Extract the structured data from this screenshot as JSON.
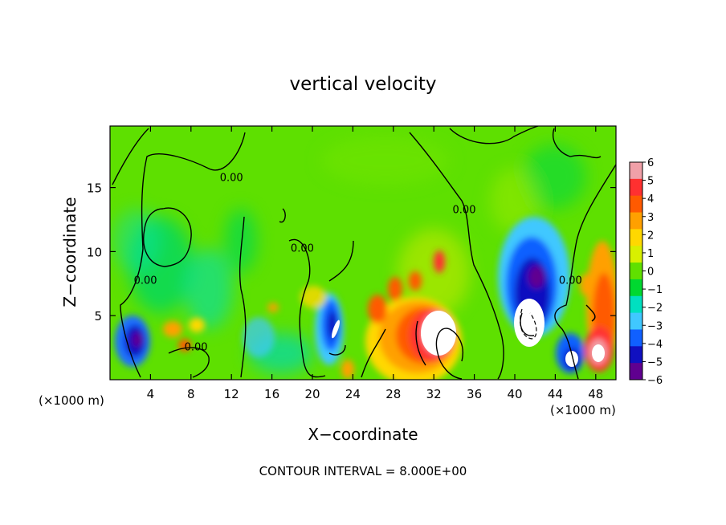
{
  "chart_data": {
    "type": "heatmap",
    "title": "vertical velocity",
    "xlabel": "X−coordinate",
    "ylabel": "Z−coordinate",
    "x_unit_label": "(×1000 m)",
    "x_unit_label_right": "(×1000 m)",
    "footer": "CONTOUR INTERVAL = 8.000E+00",
    "xlim": [
      0,
      50
    ],
    "ylim": [
      0,
      19.8
    ],
    "x_ticks": [
      4,
      8,
      12,
      16,
      20,
      24,
      28,
      32,
      36,
      40,
      44,
      48
    ],
    "y_ticks": [
      5,
      10,
      15
    ],
    "colorbar": {
      "range": [
        -6,
        6
      ],
      "ticks": [
        6,
        5,
        4,
        3,
        2,
        1,
        0,
        -1,
        -2,
        -3,
        -4,
        -5,
        -6
      ],
      "tick_labels": [
        "6",
        "5",
        "4",
        "3",
        "2",
        "1",
        "0",
        "−1",
        "−2",
        "−3",
        "−4",
        "−5",
        "−6"
      ],
      "colors": [
        "#f0a0a8",
        "#ff3030",
        "#ff5a00",
        "#ffa000",
        "#ffd800",
        "#d8f000",
        "#60e000",
        "#00d830",
        "#00e0c0",
        "#40c8ff",
        "#1060ff",
        "#1010c0",
        "#600090"
      ]
    },
    "contour_labels": [
      {
        "text": "0.00",
        "x": 12.0,
        "y": 15.5
      },
      {
        "text": "0.00",
        "x": 3.5,
        "y": 7.5
      },
      {
        "text": "0.00",
        "x": 8.5,
        "y": 2.3
      },
      {
        "text": "0.00",
        "x": 19.0,
        "y": 10.0
      },
      {
        "text": "0.00",
        "x": 35.0,
        "y": 13.0
      },
      {
        "text": "0.00",
        "x": 45.5,
        "y": 7.5
      }
    ],
    "features": [
      {
        "x": 2.5,
        "z": 3.2,
        "value": -5.5
      },
      {
        "x": 21.0,
        "z": 4.0,
        "value": -5.0
      },
      {
        "x": 31.5,
        "z": 3.0,
        "value": 8.0
      },
      {
        "x": 41.0,
        "z": 4.5,
        "value": -8.0
      },
      {
        "x": 48.5,
        "z": 2.5,
        "value": 8.0
      },
      {
        "x": 40.5,
        "z": 7.5,
        "value": -4.0
      },
      {
        "x": 46.0,
        "z": 1.5,
        "value": -5.0
      },
      {
        "x": 33.5,
        "z": 9.5,
        "value": 3.0
      },
      {
        "x": 26.5,
        "z": 5.5,
        "value": 3.0
      }
    ]
  }
}
